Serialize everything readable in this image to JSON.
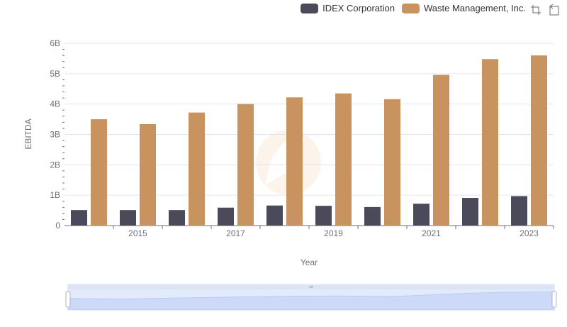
{
  "legend": {
    "items": [
      {
        "label": "IDEX Corporation",
        "color": "#4a4a5a"
      },
      {
        "label": "Waste Management, Inc.",
        "color": "#c99360"
      }
    ]
  },
  "toolbox": {
    "icons": [
      "zoom-icon",
      "restore-icon"
    ]
  },
  "chart_data": {
    "type": "bar",
    "categories": [
      "2014",
      "2015",
      "2016",
      "2017",
      "2018",
      "2019",
      "2020",
      "2021",
      "2022",
      "2023"
    ],
    "xtick_labels": [
      "2015",
      "2017",
      "2019",
      "2021",
      "2023"
    ],
    "ytick_labels": [
      "0",
      "1B",
      "2B",
      "3B",
      "4B",
      "5B",
      "6B"
    ],
    "series": [
      {
        "name": "IDEX Corporation",
        "color": "#4a4a5a",
        "values": [
          510000000,
          510000000,
          510000000,
          590000000,
          660000000,
          650000000,
          610000000,
          720000000,
          910000000,
          970000000
        ]
      },
      {
        "name": "Waste Management, Inc.",
        "color": "#c99360",
        "values": [
          3500000000,
          3340000000,
          3720000000,
          4000000000,
          4220000000,
          4350000000,
          4160000000,
          4960000000,
          5480000000,
          5600000000
        ]
      }
    ],
    "xlabel": "Year",
    "ylabel": "EBITDA",
    "ylim": [
      0,
      6000000000
    ],
    "grid": true,
    "legend_position": "top-right"
  },
  "datazoom": {
    "range_start": 0,
    "range_end": 1
  }
}
